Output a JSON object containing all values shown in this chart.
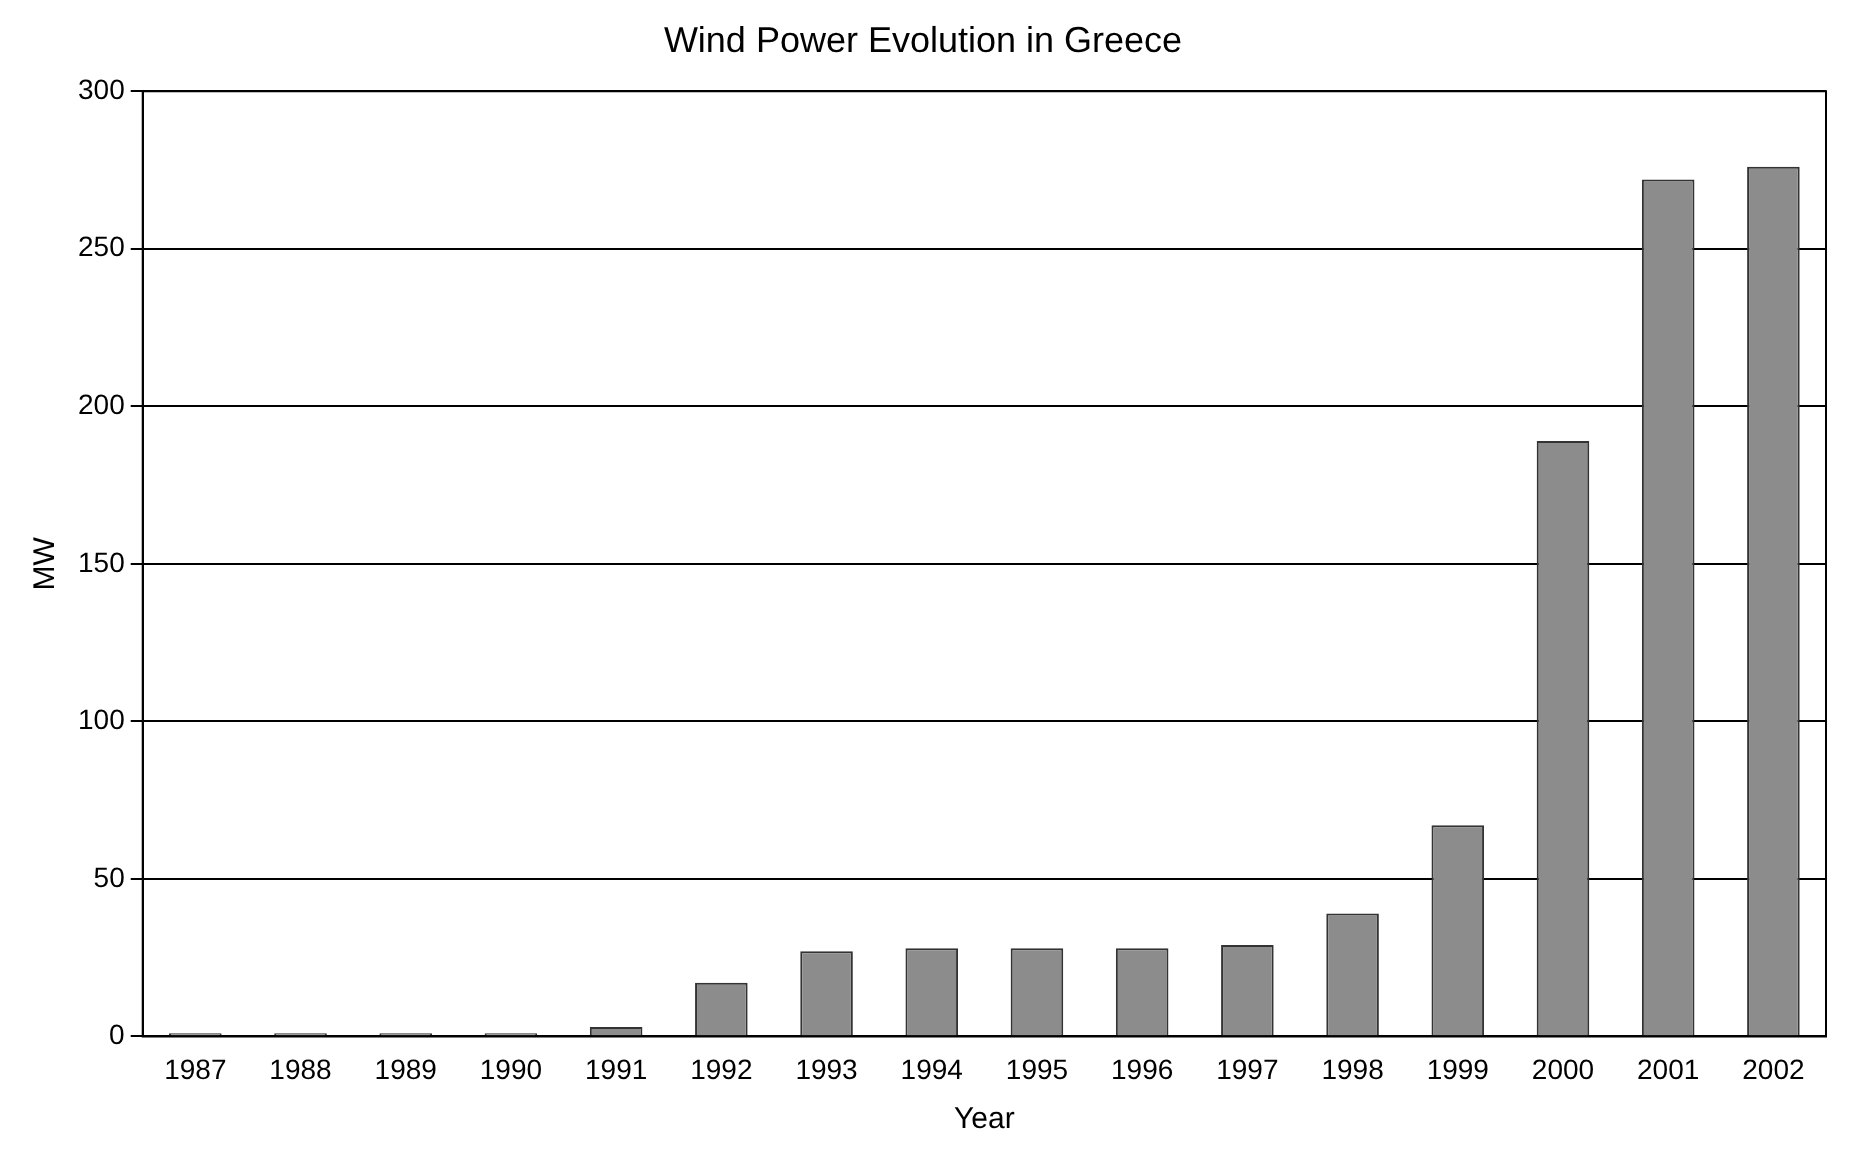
{
  "chart_data": {
    "type": "bar",
    "title": "Wind Power Evolution in Greece",
    "xlabel": "Year",
    "ylabel": "MW",
    "categories": [
      "1987",
      "1988",
      "1989",
      "1990",
      "1991",
      "1992",
      "1993",
      "1994",
      "1995",
      "1996",
      "1997",
      "1998",
      "1999",
      "2000",
      "2001",
      "2002"
    ],
    "values": [
      1,
      1,
      1,
      1,
      3,
      17,
      27,
      28,
      28,
      28,
      29,
      39,
      67,
      189,
      272,
      276
    ],
    "color": "#8c8c8c",
    "ylim": [
      0,
      300
    ],
    "yticks": [
      0,
      50,
      100,
      150,
      200,
      250,
      300
    ],
    "grid": "y",
    "legend": false
  }
}
